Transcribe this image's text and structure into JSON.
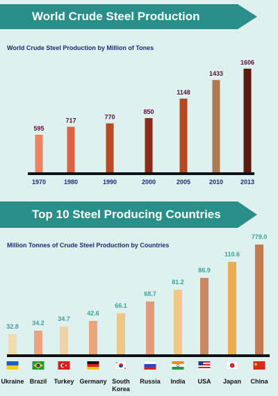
{
  "section1": {
    "banner": "World Crude Steel Production",
    "subtitle": "World Crude Steel Production by Million of Tones"
  },
  "section2": {
    "banner": "Top 10 Steel Producing Countries",
    "subtitle": "Million Tonnes of Crude Steel Production by Countries"
  },
  "chart_data": [
    {
      "type": "bar",
      "title": "World Crude Steel Production by Million of Tones",
      "categories": [
        "1970",
        "1980",
        "1990",
        "2000",
        "2005",
        "2010",
        "2013"
      ],
      "values": [
        595,
        717,
        770,
        850,
        1148,
        1433,
        1606
      ],
      "colors": [
        "#e88560",
        "#d96540",
        "#b84a25",
        "#8d2a1e",
        "#b5481f",
        "#b07a52",
        "#5a1a12"
      ],
      "value_label_color": "#5a0d3a",
      "category_label_color": "#1d2a7a",
      "ylim": [
        0,
        1700
      ]
    },
    {
      "type": "bar",
      "title": "Million Tonnes of Crude Steel Production by Countries",
      "categories": [
        "Ukraine",
        "Brazil",
        "Turkey",
        "Germany",
        "South Korea",
        "Russia",
        "India",
        "USA",
        "Japan",
        "China"
      ],
      "values": [
        32.8,
        34.2,
        34.7,
        42.6,
        66.1,
        68.7,
        81.2,
        86.9,
        110.6,
        779.0
      ],
      "value_labels": [
        "32.8",
        "34.2",
        "34.7",
        "42.6",
        "66.1",
        "68.7",
        "81.2",
        "86.9",
        "110.6",
        "779.0"
      ],
      "colors": [
        "#f3dbb0",
        "#e9a583",
        "#f2d2a8",
        "#e9a57c",
        "#efc688",
        "#e29b76",
        "#f0c787",
        "#c98a63",
        "#e8ae50",
        "#c07a52"
      ],
      "value_label_color": "#3aa29b",
      "category_label_color": "#111111",
      "flags": [
        "ukraine-flag",
        "brazil-flag",
        "turkey-flag",
        "germany-flag",
        "south-korea-flag",
        "russia-flag",
        "india-flag",
        "usa-flag",
        "japan-flag",
        "china-flag"
      ],
      "scale_note": "bar heights not proportional"
    }
  ]
}
